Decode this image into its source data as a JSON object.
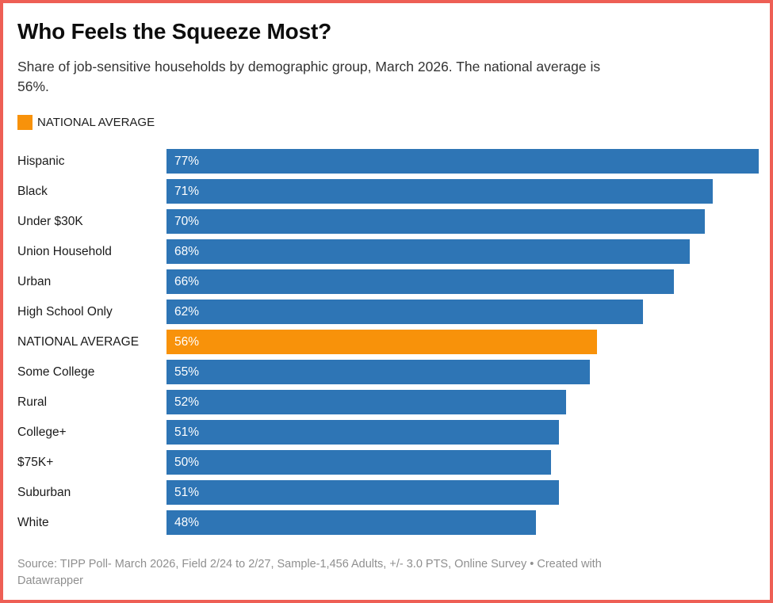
{
  "frame": {
    "border_color": "#ee5f55",
    "background_color": "#ffffff"
  },
  "header": {
    "title": "Who Feels the Squeeze Most?",
    "subtitle_lines": [
      "Share of job-sensitive households by demographic group, March 2026. The national average is",
      "56%."
    ]
  },
  "legend": {
    "label": "NATIONAL AVERAGE",
    "swatch_color": "#f8920a"
  },
  "chart_data": {
    "type": "bar",
    "orientation": "horizontal",
    "title": "Who Feels the Squeeze Most?",
    "subtitle": "Share of job-sensitive households by demographic group, March 2026. The national average is 56%.",
    "categories": [
      "Hispanic",
      "Black",
      "Under $30K",
      "Union Household",
      "Urban",
      "High School Only",
      "NATIONAL AVERAGE",
      "Some College",
      "Rural",
      "College+",
      "$75K+",
      "Suburban",
      "White"
    ],
    "values": [
      77,
      71,
      70,
      68,
      66,
      62,
      56,
      55,
      52,
      51,
      50,
      51,
      48
    ],
    "value_suffix": "%",
    "value_labels": "inside-left",
    "highlight_category": "NATIONAL AVERAGE",
    "bar_color": "#2e75b5",
    "highlight_color": "#f8920a",
    "xlim": [
      0,
      77
    ],
    "grid": false,
    "legend_position": "top-left"
  },
  "footer": {
    "lines": [
      "Source: TIPP Poll- March 2026, Field 2/24 to 2/27, Sample-1,456 Adults, +/- 3.0 PTS, Online Survey • Created with",
      "Datawrapper"
    ]
  }
}
